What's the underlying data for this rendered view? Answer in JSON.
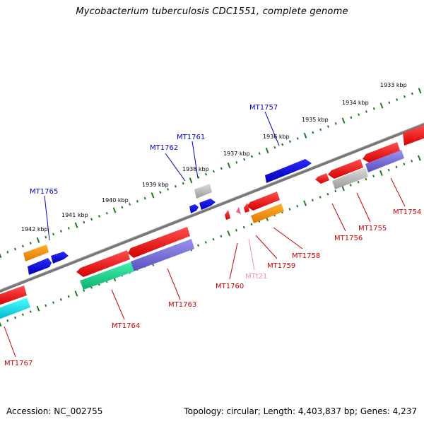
{
  "title": "Mycobacterium tuberculosis CDC1551, complete genome",
  "footer": {
    "accession": "Accession: NC_002755",
    "topology": "Topology: circular; Length: 4,403,837 bp; Genes: 4,237"
  },
  "colors": {
    "strand_line": "#7a7a7a",
    "tick": "#1f7a1f",
    "label_blue": "#0000cc",
    "label_red": "#cc0000",
    "label_pink": "#f48fb1"
  },
  "scale_labels": [
    "1933 kbp",
    "1934 kbp",
    "1935 kbp",
    "1936 kbp",
    "1937 kbp",
    "1938 kbp",
    "1939 kbp",
    "1940 kbp",
    "1941 kbp",
    "1942 kbp"
  ],
  "genes_forward": [
    "MT1757",
    "MT1761",
    "MT1762",
    "MT1765"
  ],
  "genes_reverse": [
    "MT1754",
    "MT1755",
    "MT1756",
    "MT1758",
    "MT1759",
    "MT1760",
    "MTt21",
    "MT1763",
    "MT1764",
    "MT1767"
  ]
}
